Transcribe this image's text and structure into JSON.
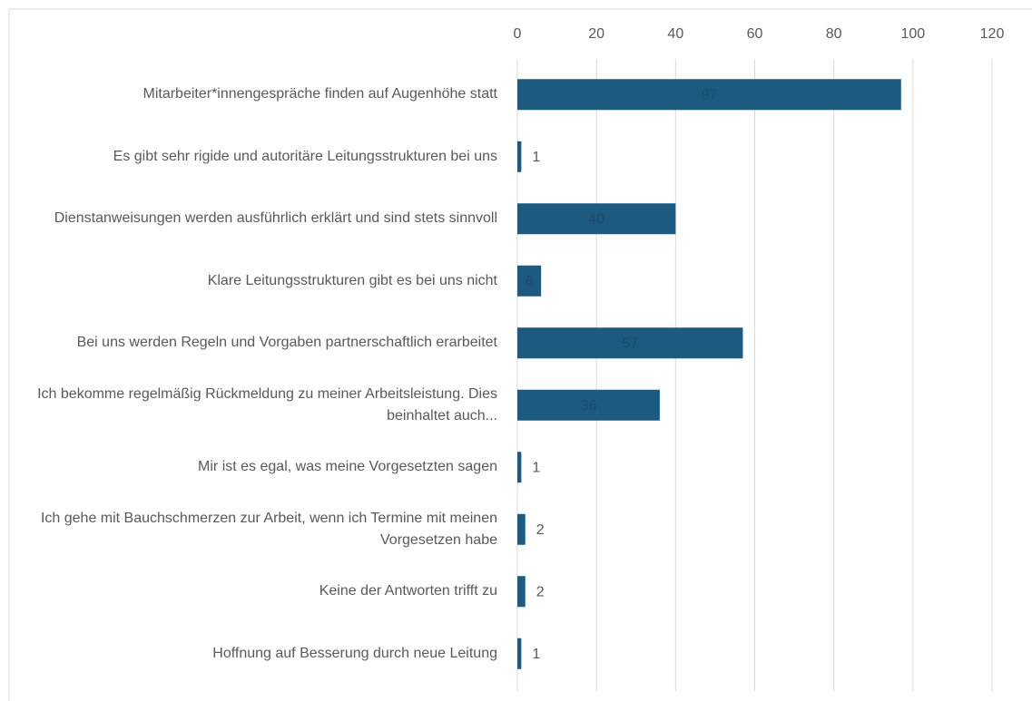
{
  "chart_data": {
    "type": "bar",
    "orientation": "horizontal",
    "categories": [
      "Mitarbeiter*innengespräche finden auf Augenhöhe statt",
      "Es gibt sehr rigide und autoritäre Leitungsstrukturen bei uns",
      "Dienstanweisungen werden ausführlich erklärt und sind stets sinnvoll",
      "Klare Leitungsstrukturen gibt es bei uns nicht",
      "Bei uns werden Regeln und Vorgaben partnerschaftlich erarbeitet",
      "Ich bekomme regelmäßig Rückmeldung zu meiner Arbeitsleistung. Dies beinhaltet auch...",
      "Mir ist es egal, was meine Vorgesetzten sagen",
      "Ich gehe mit Bauchschmerzen zur Arbeit, wenn ich Termine mit meinen Vorgesetzen habe",
      "Keine der Antworten trifft zu",
      "Hoffnung auf Besserung durch neue Leitung"
    ],
    "values": [
      97,
      1,
      40,
      6,
      57,
      36,
      1,
      2,
      2,
      1
    ],
    "color": "#1c5a80",
    "xlim": [
      0,
      120
    ],
    "xticks": [
      0,
      20,
      40,
      60,
      80,
      100,
      120
    ],
    "grid": true
  }
}
